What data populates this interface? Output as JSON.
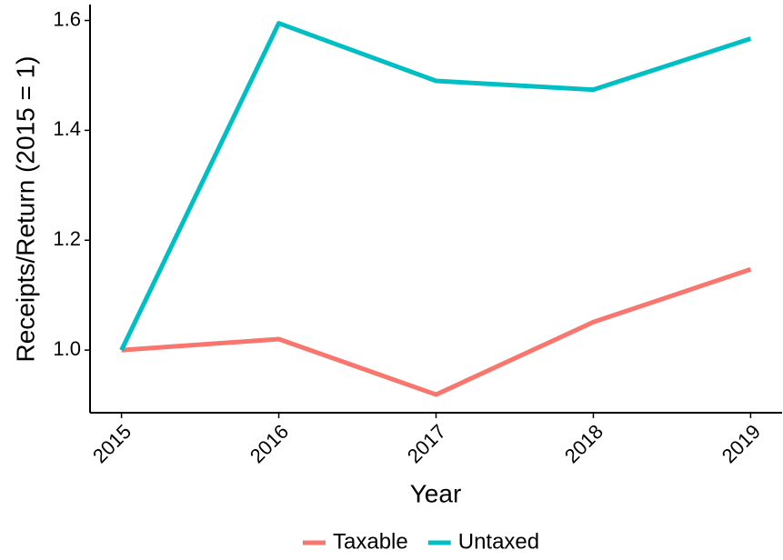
{
  "chart_data": {
    "type": "line",
    "x_label": "Year",
    "y_label": "Receipts/Return (2015 = 1)",
    "categories": [
      "2015",
      "2016",
      "2017",
      "2018",
      "2019"
    ],
    "series": [
      {
        "name": "Taxable",
        "color": "#F8766D",
        "values": [
          1.0,
          1.02,
          0.919,
          1.051,
          1.147
        ]
      },
      {
        "name": "Untaxed",
        "color": "#00BFC4",
        "values": [
          1.0,
          1.595,
          1.49,
          1.474,
          1.567
        ]
      }
    ],
    "ylim": [
      0.886,
      1.629
    ],
    "yticks": [
      {
        "value": 1,
        "label": "1.0"
      },
      1.2,
      1.4,
      1.6
    ],
    "grid": false,
    "legend": "bottom"
  }
}
